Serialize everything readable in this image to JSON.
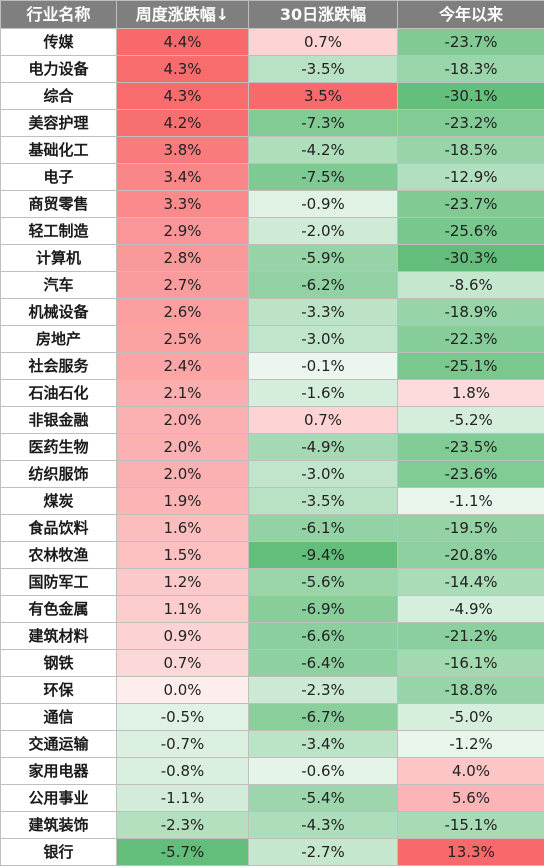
{
  "headers": [
    "行业名称",
    "周度涨跌幅↓",
    "30日涨跌幅",
    "今年以来"
  ],
  "rows": [
    {
      "name": "传媒",
      "weekly": "4.4%",
      "d30": "0.7%",
      "ytd": "-23.7%"
    },
    {
      "name": "电力设备",
      "weekly": "4.3%",
      "d30": "-3.5%",
      "ytd": "-18.3%"
    },
    {
      "name": "综合",
      "weekly": "4.3%",
      "d30": "3.5%",
      "ytd": "-30.1%"
    },
    {
      "name": "美容护理",
      "weekly": "4.2%",
      "d30": "-7.3%",
      "ytd": "-23.2%"
    },
    {
      "name": "基础化工",
      "weekly": "3.8%",
      "d30": "-4.2%",
      "ytd": "-18.5%"
    },
    {
      "name": "电子",
      "weekly": "3.4%",
      "d30": "-7.5%",
      "ytd": "-12.9%"
    },
    {
      "name": "商贸零售",
      "weekly": "3.3%",
      "d30": "-0.9%",
      "ytd": "-23.7%"
    },
    {
      "name": "轻工制造",
      "weekly": "2.9%",
      "d30": "-2.0%",
      "ytd": "-25.6%"
    },
    {
      "name": "计算机",
      "weekly": "2.8%",
      "d30": "-5.9%",
      "ytd": "-30.3%"
    },
    {
      "name": "汽车",
      "weekly": "2.7%",
      "d30": "-6.2%",
      "ytd": "-8.6%"
    },
    {
      "name": "机械设备",
      "weekly": "2.6%",
      "d30": "-3.3%",
      "ytd": "-18.9%"
    },
    {
      "name": "房地产",
      "weekly": "2.5%",
      "d30": "-3.0%",
      "ytd": "-22.3%"
    },
    {
      "name": "社会服务",
      "weekly": "2.4%",
      "d30": "-0.1%",
      "ytd": "-25.1%"
    },
    {
      "name": "石油石化",
      "weekly": "2.1%",
      "d30": "-1.6%",
      "ytd": "1.8%"
    },
    {
      "name": "非银金融",
      "weekly": "2.0%",
      "d30": "0.7%",
      "ytd": "-5.2%"
    },
    {
      "name": "医药生物",
      "weekly": "2.0%",
      "d30": "-4.9%",
      "ytd": "-23.5%"
    },
    {
      "name": "纺织服饰",
      "weekly": "2.0%",
      "d30": "-3.0%",
      "ytd": "-23.6%"
    },
    {
      "name": "煤炭",
      "weekly": "1.9%",
      "d30": "-3.5%",
      "ytd": "-1.1%"
    },
    {
      "name": "食品饮料",
      "weekly": "1.6%",
      "d30": "-6.1%",
      "ytd": "-19.5%"
    },
    {
      "name": "农林牧渔",
      "weekly": "1.5%",
      "d30": "-9.4%",
      "ytd": "-20.8%"
    },
    {
      "name": "国防军工",
      "weekly": "1.2%",
      "d30": "-5.6%",
      "ytd": "-14.4%"
    },
    {
      "name": "有色金属",
      "weekly": "1.1%",
      "d30": "-6.9%",
      "ytd": "-4.9%"
    },
    {
      "name": "建筑材料",
      "weekly": "0.9%",
      "d30": "-6.6%",
      "ytd": "-21.2%"
    },
    {
      "name": "钢铁",
      "weekly": "0.7%",
      "d30": "-6.4%",
      "ytd": "-16.1%"
    },
    {
      "name": "环保",
      "weekly": "0.0%",
      "d30": "-2.3%",
      "ytd": "-18.8%"
    },
    {
      "name": "通信",
      "weekly": "-0.5%",
      "d30": "-6.7%",
      "ytd": "-5.0%"
    },
    {
      "name": "交通运输",
      "weekly": "-0.7%",
      "d30": "-3.4%",
      "ytd": "-1.2%"
    },
    {
      "name": "家用电器",
      "weekly": "-0.8%",
      "d30": "-0.6%",
      "ytd": "4.0%"
    },
    {
      "name": "公用事业",
      "weekly": "-1.1%",
      "d30": "-5.4%",
      "ytd": "5.6%"
    },
    {
      "name": "建筑装饰",
      "weekly": "-2.3%",
      "d30": "-4.3%",
      "ytd": "-15.1%"
    },
    {
      "name": "银行",
      "weekly": "-5.7%",
      "d30": "-2.7%",
      "ytd": "13.3%"
    }
  ],
  "colors": {
    "header_bg": "#7f7f7f",
    "positive": "#f8696b",
    "negative": "#63be7b",
    "neutral": "#ffffff"
  }
}
